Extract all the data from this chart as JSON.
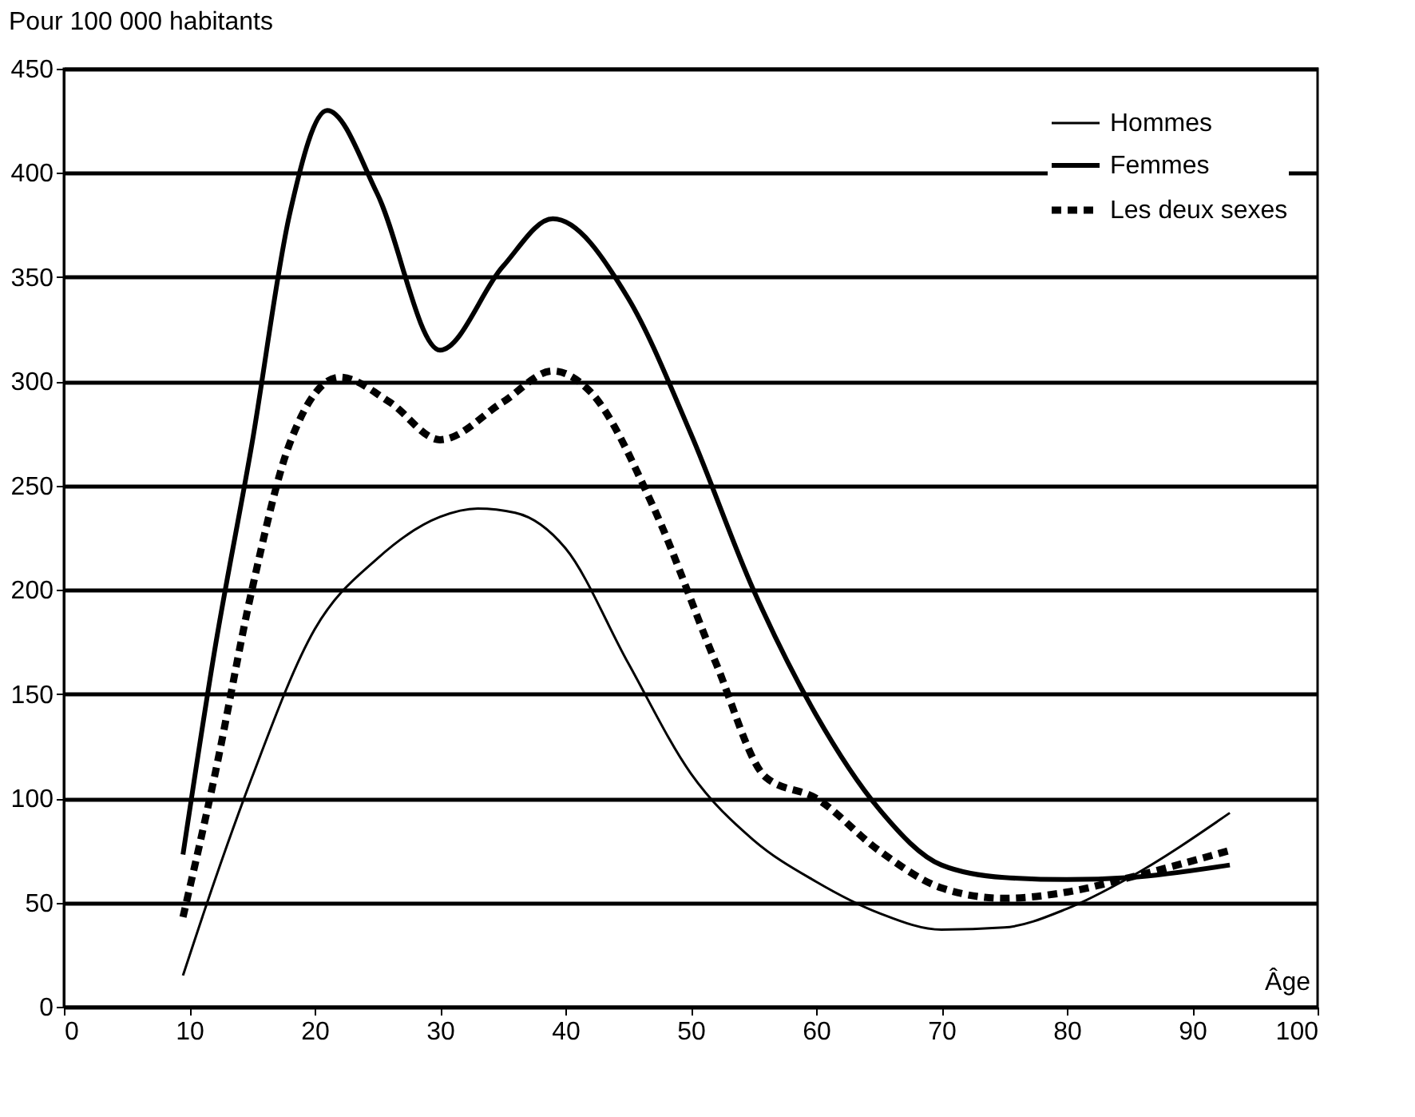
{
  "chart_data": {
    "type": "line",
    "ylabel": "Pour 100 000 habitants",
    "xlabel": "Âge",
    "xlim": [
      0,
      100
    ],
    "xticks": [
      0,
      10,
      20,
      30,
      40,
      50,
      60,
      70,
      80,
      90,
      100
    ],
    "ylim": [
      0,
      450
    ],
    "yticks": [
      0,
      50,
      100,
      150,
      200,
      250,
      300,
      350,
      400,
      450
    ],
    "grid": "y",
    "legend": "top right",
    "marker": "none",
    "series": [
      {
        "name": "Hommes",
        "color": "#000000",
        "line_style": "solid",
        "x": [
          9.5,
          12,
          15,
          20,
          25,
          30,
          33,
          36,
          40,
          45,
          50,
          55,
          60,
          65,
          70,
          75,
          80,
          85,
          93
        ],
        "values": [
          15,
          60,
          110,
          181,
          215,
          235,
          239,
          237,
          220,
          165,
          112,
          80,
          60,
          45,
          37,
          38,
          47,
          62,
          93
        ]
      },
      {
        "name": "Femmes",
        "color": "#000000",
        "line_style": "solid",
        "x": [
          9.5,
          12,
          15,
          18,
          21,
          25,
          30,
          35,
          39,
          45,
          50,
          55,
          60,
          65,
          70,
          75,
          80,
          85,
          93
        ],
        "values": [
          73,
          170,
          270,
          380,
          430,
          390,
          315,
          355,
          378,
          340,
          275,
          200,
          140,
          95,
          68,
          62,
          61,
          62,
          68
        ]
      },
      {
        "name": "Les deux sexes",
        "color": "#000000",
        "line_style": "dashed",
        "x": [
          9.5,
          12,
          15,
          18,
          22,
          26,
          30,
          35,
          39,
          42,
          47,
          52,
          56,
          60,
          65,
          70,
          75,
          80,
          85,
          93
        ],
        "values": [
          43,
          110,
          200,
          270,
          302,
          290,
          272,
          290,
          305,
          295,
          240,
          165,
          110,
          100,
          75,
          57,
          52,
          55,
          62,
          75
        ]
      }
    ]
  }
}
